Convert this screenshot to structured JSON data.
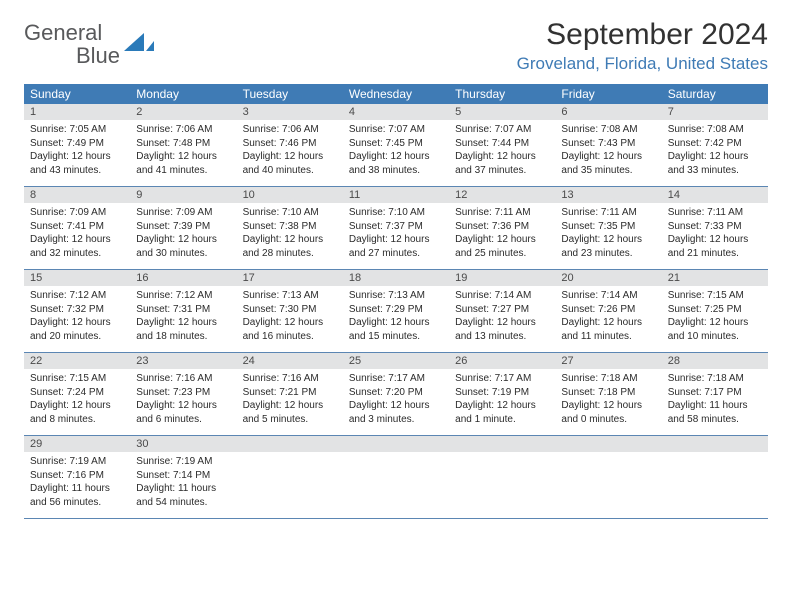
{
  "brand": {
    "part1": "General",
    "part2": "Blue"
  },
  "title": "September 2024",
  "location": "Groveland, Florida, United States",
  "colors": {
    "header_bg": "#3f7bb5",
    "header_text": "#ffffff",
    "daynum_bg": "#e2e3e4",
    "body_text": "#2b2b2b",
    "rule": "#5b86b3",
    "brand_gray": "#58595b",
    "brand_blue": "#2a7ab9"
  },
  "weekdays": [
    "Sunday",
    "Monday",
    "Tuesday",
    "Wednesday",
    "Thursday",
    "Friday",
    "Saturday"
  ],
  "days": [
    {
      "n": "1",
      "sr": "7:05 AM",
      "ss": "7:49 PM",
      "dl": "12 hours and 43 minutes."
    },
    {
      "n": "2",
      "sr": "7:06 AM",
      "ss": "7:48 PM",
      "dl": "12 hours and 41 minutes."
    },
    {
      "n": "3",
      "sr": "7:06 AM",
      "ss": "7:46 PM",
      "dl": "12 hours and 40 minutes."
    },
    {
      "n": "4",
      "sr": "7:07 AM",
      "ss": "7:45 PM",
      "dl": "12 hours and 38 minutes."
    },
    {
      "n": "5",
      "sr": "7:07 AM",
      "ss": "7:44 PM",
      "dl": "12 hours and 37 minutes."
    },
    {
      "n": "6",
      "sr": "7:08 AM",
      "ss": "7:43 PM",
      "dl": "12 hours and 35 minutes."
    },
    {
      "n": "7",
      "sr": "7:08 AM",
      "ss": "7:42 PM",
      "dl": "12 hours and 33 minutes."
    },
    {
      "n": "8",
      "sr": "7:09 AM",
      "ss": "7:41 PM",
      "dl": "12 hours and 32 minutes."
    },
    {
      "n": "9",
      "sr": "7:09 AM",
      "ss": "7:39 PM",
      "dl": "12 hours and 30 minutes."
    },
    {
      "n": "10",
      "sr": "7:10 AM",
      "ss": "7:38 PM",
      "dl": "12 hours and 28 minutes."
    },
    {
      "n": "11",
      "sr": "7:10 AM",
      "ss": "7:37 PM",
      "dl": "12 hours and 27 minutes."
    },
    {
      "n": "12",
      "sr": "7:11 AM",
      "ss": "7:36 PM",
      "dl": "12 hours and 25 minutes."
    },
    {
      "n": "13",
      "sr": "7:11 AM",
      "ss": "7:35 PM",
      "dl": "12 hours and 23 minutes."
    },
    {
      "n": "14",
      "sr": "7:11 AM",
      "ss": "7:33 PM",
      "dl": "12 hours and 21 minutes."
    },
    {
      "n": "15",
      "sr": "7:12 AM",
      "ss": "7:32 PM",
      "dl": "12 hours and 20 minutes."
    },
    {
      "n": "16",
      "sr": "7:12 AM",
      "ss": "7:31 PM",
      "dl": "12 hours and 18 minutes."
    },
    {
      "n": "17",
      "sr": "7:13 AM",
      "ss": "7:30 PM",
      "dl": "12 hours and 16 minutes."
    },
    {
      "n": "18",
      "sr": "7:13 AM",
      "ss": "7:29 PM",
      "dl": "12 hours and 15 minutes."
    },
    {
      "n": "19",
      "sr": "7:14 AM",
      "ss": "7:27 PM",
      "dl": "12 hours and 13 minutes."
    },
    {
      "n": "20",
      "sr": "7:14 AM",
      "ss": "7:26 PM",
      "dl": "12 hours and 11 minutes."
    },
    {
      "n": "21",
      "sr": "7:15 AM",
      "ss": "7:25 PM",
      "dl": "12 hours and 10 minutes."
    },
    {
      "n": "22",
      "sr": "7:15 AM",
      "ss": "7:24 PM",
      "dl": "12 hours and 8 minutes."
    },
    {
      "n": "23",
      "sr": "7:16 AM",
      "ss": "7:23 PM",
      "dl": "12 hours and 6 minutes."
    },
    {
      "n": "24",
      "sr": "7:16 AM",
      "ss": "7:21 PM",
      "dl": "12 hours and 5 minutes."
    },
    {
      "n": "25",
      "sr": "7:17 AM",
      "ss": "7:20 PM",
      "dl": "12 hours and 3 minutes."
    },
    {
      "n": "26",
      "sr": "7:17 AM",
      "ss": "7:19 PM",
      "dl": "12 hours and 1 minute."
    },
    {
      "n": "27",
      "sr": "7:18 AM",
      "ss": "7:18 PM",
      "dl": "12 hours and 0 minutes."
    },
    {
      "n": "28",
      "sr": "7:18 AM",
      "ss": "7:17 PM",
      "dl": "11 hours and 58 minutes."
    },
    {
      "n": "29",
      "sr": "7:19 AM",
      "ss": "7:16 PM",
      "dl": "11 hours and 56 minutes."
    },
    {
      "n": "30",
      "sr": "7:19 AM",
      "ss": "7:14 PM",
      "dl": "11 hours and 54 minutes."
    }
  ],
  "labels": {
    "sunrise": "Sunrise:",
    "sunset": "Sunset:",
    "daylight": "Daylight:"
  }
}
